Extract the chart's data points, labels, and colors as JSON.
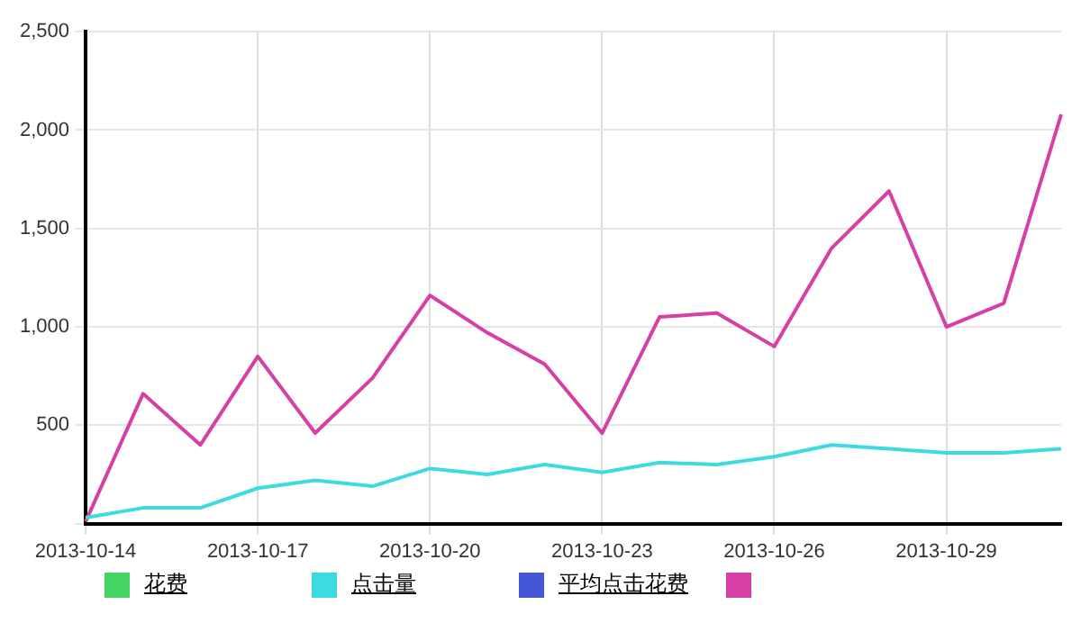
{
  "chart_data": {
    "type": "line",
    "categories": [
      "2013-10-14",
      null,
      null,
      "2013-10-17",
      null,
      null,
      "2013-10-20",
      null,
      null,
      "2013-10-23",
      null,
      null,
      "2013-10-26",
      null,
      null,
      "2013-10-29",
      null,
      null
    ],
    "series": [
      {
        "name": "花费",
        "color": "#44d463",
        "values": [
          null,
          null,
          null,
          null,
          null,
          null,
          null,
          null,
          null,
          null,
          null,
          null,
          null,
          null,
          null,
          null,
          null,
          null
        ]
      },
      {
        "name": "点击量",
        "color": "#3ddbe0",
        "values": [
          30,
          80,
          80,
          180,
          220,
          190,
          280,
          250,
          300,
          260,
          310,
          300,
          340,
          400,
          380,
          360,
          360,
          380
        ]
      },
      {
        "name": "平均点击花费",
        "color": "#4556d6",
        "values": [
          null,
          null,
          null,
          null,
          null,
          null,
          null,
          null,
          null,
          null,
          null,
          null,
          null,
          null,
          null,
          null,
          null,
          null
        ]
      },
      {
        "color": "#d63fa6",
        "values": [
          10,
          660,
          400,
          850,
          460,
          740,
          1160,
          970,
          810,
          460,
          1050,
          1070,
          900,
          1400,
          1690,
          1000,
          1120,
          2080
        ]
      }
    ],
    "ylim": [
      0,
      2500
    ],
    "yticks": [
      {
        "value": 0,
        "label": null
      },
      500,
      {
        "value": 1000,
        "label": "1,000"
      },
      {
        "value": 1500,
        "label": "1,500"
      },
      {
        "value": 2000,
        "label": "2,000"
      },
      {
        "value": 2500,
        "label": "2,500"
      }
    ],
    "grid": true,
    "legend": "bottom",
    "marker": "none",
    "line_style": "solid"
  }
}
